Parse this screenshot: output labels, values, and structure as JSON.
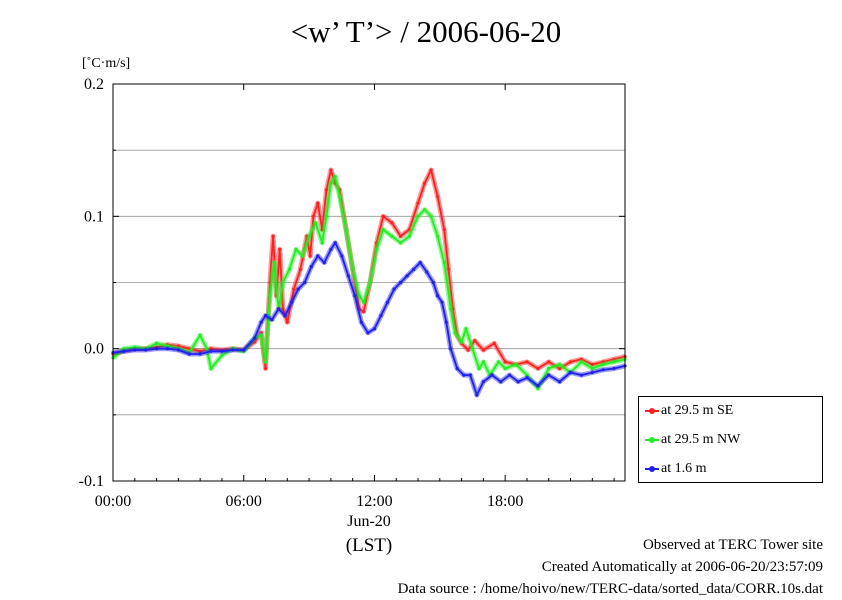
{
  "title": "<w’ T’> / 2006-06-20",
  "unit_label": "[˚C·m/s]",
  "footer": {
    "line1": "Observed at TERC Tower site",
    "line2": "Created Automatically at 2006-06-20/23:57:09",
    "line3": "Data source : /home/hoivo/new/TERC-data/sorted_data/CORR.10s.dat"
  },
  "chart_data": {
    "type": "line",
    "title": "<w’ T’> / 2006-06-20",
    "ylabel": "[˚C·m/s]",
    "xlabel": "(LST)",
    "x_date_label": "Jun-20",
    "xlim": [
      0,
      23.5
    ],
    "ylim": [
      -0.1,
      0.2
    ],
    "x_ticks": [
      {
        "value": 0,
        "label": "00:00"
      },
      {
        "value": 6,
        "label": "06:00"
      },
      {
        "value": 12,
        "label": "12:00"
      },
      {
        "value": 18,
        "label": "18:00"
      }
    ],
    "y_ticks": [
      {
        "value": -0.1,
        "label": "-0.1"
      },
      {
        "value": 0.0,
        "label": "0.0"
      },
      {
        "value": 0.1,
        "label": "0.1"
      },
      {
        "value": 0.2,
        "label": "0.2"
      }
    ],
    "grid": "horizontal",
    "legend_position": "bottom-right outside",
    "series": [
      {
        "name": "at 29.5 m SE",
        "color": "#ff2020",
        "points": [
          [
            0,
            -0.004
          ],
          [
            0.5,
            -0.002
          ],
          [
            1,
            0.0
          ],
          [
            1.5,
            0.0
          ],
          [
            2,
            0.001
          ],
          [
            2.5,
            0.003
          ],
          [
            3,
            0.002
          ],
          [
            3.5,
            0.0
          ],
          [
            4,
            -0.002
          ],
          [
            4.5,
            0.0
          ],
          [
            5,
            -0.001
          ],
          [
            5.5,
            0.0
          ],
          [
            6,
            -0.001
          ],
          [
            6.5,
            0.005
          ],
          [
            6.8,
            0.012
          ],
          [
            7.0,
            -0.015
          ],
          [
            7.2,
            0.05
          ],
          [
            7.35,
            0.085
          ],
          [
            7.5,
            0.04
          ],
          [
            7.65,
            0.075
          ],
          [
            7.8,
            0.03
          ],
          [
            8.0,
            0.02
          ],
          [
            8.3,
            0.045
          ],
          [
            8.6,
            0.06
          ],
          [
            8.9,
            0.085
          ],
          [
            9.05,
            0.07
          ],
          [
            9.2,
            0.1
          ],
          [
            9.4,
            0.11
          ],
          [
            9.6,
            0.09
          ],
          [
            9.8,
            0.12
          ],
          [
            10.0,
            0.135
          ],
          [
            10.2,
            0.125
          ],
          [
            10.4,
            0.12
          ],
          [
            10.7,
            0.09
          ],
          [
            11.0,
            0.06
          ],
          [
            11.3,
            0.03
          ],
          [
            11.5,
            0.028
          ],
          [
            11.8,
            0.05
          ],
          [
            12.1,
            0.08
          ],
          [
            12.4,
            0.1
          ],
          [
            12.8,
            0.095
          ],
          [
            13.2,
            0.085
          ],
          [
            13.6,
            0.09
          ],
          [
            14.0,
            0.11
          ],
          [
            14.3,
            0.125
          ],
          [
            14.6,
            0.135
          ],
          [
            14.9,
            0.115
          ],
          [
            15.2,
            0.09
          ],
          [
            15.4,
            0.06
          ],
          [
            15.6,
            0.03
          ],
          [
            15.8,
            0.01
          ],
          [
            16.0,
            0.004
          ],
          [
            16.3,
            -0.001
          ],
          [
            16.6,
            0.006
          ],
          [
            17.0,
            -0.001
          ],
          [
            17.5,
            0.004
          ],
          [
            18.0,
            -0.01
          ],
          [
            18.5,
            -0.012
          ],
          [
            19.0,
            -0.01
          ],
          [
            19.5,
            -0.015
          ],
          [
            20.0,
            -0.01
          ],
          [
            20.5,
            -0.015
          ],
          [
            21.0,
            -0.01
          ],
          [
            21.5,
            -0.008
          ],
          [
            22.0,
            -0.012
          ],
          [
            22.5,
            -0.01
          ],
          [
            23.0,
            -0.008
          ],
          [
            23.5,
            -0.006
          ]
        ]
      },
      {
        "name": "at 29.5 m NW",
        "color": "#20ee20",
        "points": [
          [
            0,
            -0.007
          ],
          [
            0.5,
            0.0
          ],
          [
            1,
            0.001
          ],
          [
            1.5,
            0.0
          ],
          [
            2,
            0.004
          ],
          [
            2.5,
            0.002
          ],
          [
            3,
            0.0
          ],
          [
            3.5,
            -0.003
          ],
          [
            4,
            0.01
          ],
          [
            4.3,
            0.0
          ],
          [
            4.5,
            -0.015
          ],
          [
            5,
            -0.005
          ],
          [
            5.5,
            0.0
          ],
          [
            6,
            -0.002
          ],
          [
            6.5,
            0.008
          ],
          [
            6.8,
            0.01
          ],
          [
            7.0,
            -0.01
          ],
          [
            7.2,
            0.04
          ],
          [
            7.4,
            0.065
          ],
          [
            7.6,
            0.03
          ],
          [
            7.8,
            0.05
          ],
          [
            8.1,
            0.06
          ],
          [
            8.4,
            0.075
          ],
          [
            8.7,
            0.07
          ],
          [
            9.0,
            0.085
          ],
          [
            9.3,
            0.095
          ],
          [
            9.6,
            0.08
          ],
          [
            9.8,
            0.1
          ],
          [
            10.0,
            0.125
          ],
          [
            10.2,
            0.13
          ],
          [
            10.4,
            0.115
          ],
          [
            10.7,
            0.09
          ],
          [
            11.0,
            0.06
          ],
          [
            11.3,
            0.04
          ],
          [
            11.5,
            0.035
          ],
          [
            11.8,
            0.05
          ],
          [
            12.1,
            0.075
          ],
          [
            12.4,
            0.09
          ],
          [
            12.8,
            0.085
          ],
          [
            13.2,
            0.08
          ],
          [
            13.6,
            0.085
          ],
          [
            14.0,
            0.1
          ],
          [
            14.3,
            0.105
          ],
          [
            14.6,
            0.1
          ],
          [
            14.9,
            0.085
          ],
          [
            15.2,
            0.065
          ],
          [
            15.5,
            0.03
          ],
          [
            15.7,
            0.012
          ],
          [
            16.0,
            0.005
          ],
          [
            16.2,
            0.015
          ],
          [
            16.5,
            0.0
          ],
          [
            16.8,
            -0.015
          ],
          [
            17.0,
            -0.01
          ],
          [
            17.3,
            -0.02
          ],
          [
            17.7,
            -0.01
          ],
          [
            18.0,
            -0.015
          ],
          [
            18.5,
            -0.012
          ],
          [
            19.0,
            -0.02
          ],
          [
            19.5,
            -0.03
          ],
          [
            20.0,
            -0.015
          ],
          [
            20.5,
            -0.012
          ],
          [
            21.0,
            -0.018
          ],
          [
            21.5,
            -0.01
          ],
          [
            22.0,
            -0.015
          ],
          [
            22.5,
            -0.012
          ],
          [
            23.0,
            -0.01
          ],
          [
            23.5,
            -0.008
          ]
        ]
      },
      {
        "name": "at 1.6 m",
        "color": "#2020ee",
        "points": [
          [
            0,
            -0.003
          ],
          [
            0.5,
            -0.002
          ],
          [
            1,
            -0.001
          ],
          [
            1.5,
            -0.001
          ],
          [
            2,
            0.0
          ],
          [
            2.5,
            0.0
          ],
          [
            3,
            -0.001
          ],
          [
            3.5,
            -0.004
          ],
          [
            4,
            -0.004
          ],
          [
            4.5,
            -0.002
          ],
          [
            5,
            -0.002
          ],
          [
            5.5,
            -0.001
          ],
          [
            6,
            -0.001
          ],
          [
            6.5,
            0.008
          ],
          [
            6.8,
            0.02
          ],
          [
            7.0,
            0.025
          ],
          [
            7.3,
            0.022
          ],
          [
            7.6,
            0.03
          ],
          [
            7.9,
            0.025
          ],
          [
            8.2,
            0.035
          ],
          [
            8.5,
            0.045
          ],
          [
            8.8,
            0.05
          ],
          [
            9.1,
            0.062
          ],
          [
            9.4,
            0.07
          ],
          [
            9.7,
            0.065
          ],
          [
            10.0,
            0.075
          ],
          [
            10.2,
            0.08
          ],
          [
            10.5,
            0.07
          ],
          [
            10.8,
            0.055
          ],
          [
            11.1,
            0.04
          ],
          [
            11.4,
            0.02
          ],
          [
            11.7,
            0.012
          ],
          [
            12.0,
            0.015
          ],
          [
            12.3,
            0.025
          ],
          [
            12.6,
            0.035
          ],
          [
            12.9,
            0.045
          ],
          [
            13.2,
            0.05
          ],
          [
            13.5,
            0.055
          ],
          [
            13.8,
            0.06
          ],
          [
            14.1,
            0.065
          ],
          [
            14.4,
            0.058
          ],
          [
            14.7,
            0.05
          ],
          [
            14.9,
            0.04
          ],
          [
            15.1,
            0.035
          ],
          [
            15.3,
            0.02
          ],
          [
            15.5,
            0.0
          ],
          [
            15.8,
            -0.015
          ],
          [
            16.1,
            -0.02
          ],
          [
            16.4,
            -0.02
          ],
          [
            16.7,
            -0.035
          ],
          [
            17.0,
            -0.025
          ],
          [
            17.4,
            -0.02
          ],
          [
            17.8,
            -0.025
          ],
          [
            18.2,
            -0.02
          ],
          [
            18.6,
            -0.025
          ],
          [
            19.0,
            -0.022
          ],
          [
            19.5,
            -0.028
          ],
          [
            20.0,
            -0.02
          ],
          [
            20.5,
            -0.025
          ],
          [
            21.0,
            -0.018
          ],
          [
            21.5,
            -0.02
          ],
          [
            22.0,
            -0.018
          ],
          [
            22.5,
            -0.016
          ],
          [
            23.0,
            -0.015
          ],
          [
            23.5,
            -0.013
          ]
        ]
      }
    ]
  }
}
